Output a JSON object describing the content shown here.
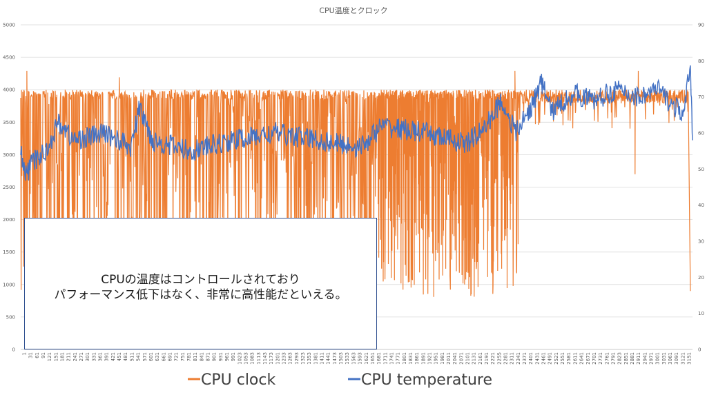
{
  "chart_data": {
    "type": "line",
    "title": "CPU温度とクロック",
    "x_ticks": [
      "1",
      "31",
      "61",
      "91",
      "121",
      "151",
      "181",
      "211",
      "241",
      "271",
      "301",
      "331",
      "361",
      "391",
      "421",
      "451",
      "481",
      "511",
      "541",
      "571",
      "601",
      "631",
      "661",
      "691",
      "721",
      "751",
      "781",
      "811",
      "841",
      "871",
      "901",
      "931",
      "961",
      "991",
      "1023",
      "1053",
      "1083",
      "1113",
      "1143",
      "1173",
      "1201",
      "1233",
      "1263",
      "1293",
      "1323",
      "1353",
      "1381",
      "1411",
      "1441",
      "1473",
      "1503",
      "1533",
      "1563",
      "1593",
      "1621",
      "1651",
      "1681",
      "1711",
      "1741",
      "1771",
      "1801",
      "1831",
      "1861",
      "1891",
      "1921",
      "1951",
      "1981",
      "2011",
      "2041",
      "2071",
      "2101",
      "2131",
      "2161",
      "2191",
      "2221",
      "2255",
      "2281",
      "2311",
      "2341",
      "2371",
      "2401",
      "2431",
      "2461",
      "2491",
      "2521",
      "2551",
      "2581",
      "2611",
      "2641",
      "2671",
      "2701",
      "2731",
      "2761",
      "2791",
      "2823",
      "2851",
      "2881",
      "2911",
      "2941",
      "2971",
      "3001",
      "3031",
      "3061",
      "3091",
      "3121",
      "3151"
    ],
    "x_range": [
      1,
      3160
    ],
    "y_left": {
      "ticks": [
        "0",
        "500",
        "1000",
        "1500",
        "2000",
        "2500",
        "3000",
        "3500",
        "4000",
        "4500",
        "5000"
      ],
      "range": [
        0,
        5000
      ]
    },
    "y_right": {
      "ticks": [
        "0",
        "10",
        "20",
        "30",
        "40",
        "50",
        "60",
        "70",
        "80",
        "90"
      ],
      "range": [
        0,
        90
      ]
    },
    "grid": "horizontal",
    "legend_position": "bottom",
    "series": [
      {
        "name": "CPU clock",
        "axis": "left",
        "color": "#ED7D31",
        "summary_segments": [
          {
            "x": [
              1,
              1680
            ],
            "high": 4000,
            "low": 800
          },
          {
            "x": [
              1680,
              2340
            ],
            "high": 4000,
            "low": 800
          },
          {
            "x": [
              2340,
              3140
            ],
            "high": 4000,
            "low": 3400
          }
        ],
        "spikes": [
          [
            30,
            4290
          ],
          [
            465,
            4190
          ],
          [
            2325,
            4290
          ],
          [
            2905,
            4290
          ],
          [
            2890,
            2700
          ],
          [
            3150,
            900
          ]
        ]
      },
      {
        "name": "CPU temperature",
        "axis": "right",
        "color": "#4472C4",
        "summary_points": [
          [
            1,
            55
          ],
          [
            20,
            48
          ],
          [
            60,
            52
          ],
          [
            120,
            55
          ],
          [
            180,
            63
          ],
          [
            250,
            58
          ],
          [
            400,
            60
          ],
          [
            520,
            56
          ],
          [
            560,
            67
          ],
          [
            620,
            58
          ],
          [
            800,
            55
          ],
          [
            1000,
            58
          ],
          [
            1200,
            60
          ],
          [
            1400,
            58
          ],
          [
            1600,
            56
          ],
          [
            1700,
            62
          ],
          [
            1900,
            60
          ],
          [
            2100,
            57
          ],
          [
            2190,
            62
          ],
          [
            2260,
            69
          ],
          [
            2330,
            60
          ],
          [
            2400,
            67
          ],
          [
            2450,
            74
          ],
          [
            2500,
            66
          ],
          [
            2600,
            71
          ],
          [
            2700,
            69
          ],
          [
            2800,
            72
          ],
          [
            2900,
            70
          ],
          [
            3000,
            72
          ],
          [
            3060,
            68
          ],
          [
            3120,
            65
          ],
          [
            3150,
            79
          ],
          [
            3160,
            58
          ]
        ]
      }
    ]
  },
  "annotation": {
    "line1": "CPUの温度はコントロールされており",
    "line2": "パフォーマンス低下はなく、非常に高性能だといえる。"
  }
}
